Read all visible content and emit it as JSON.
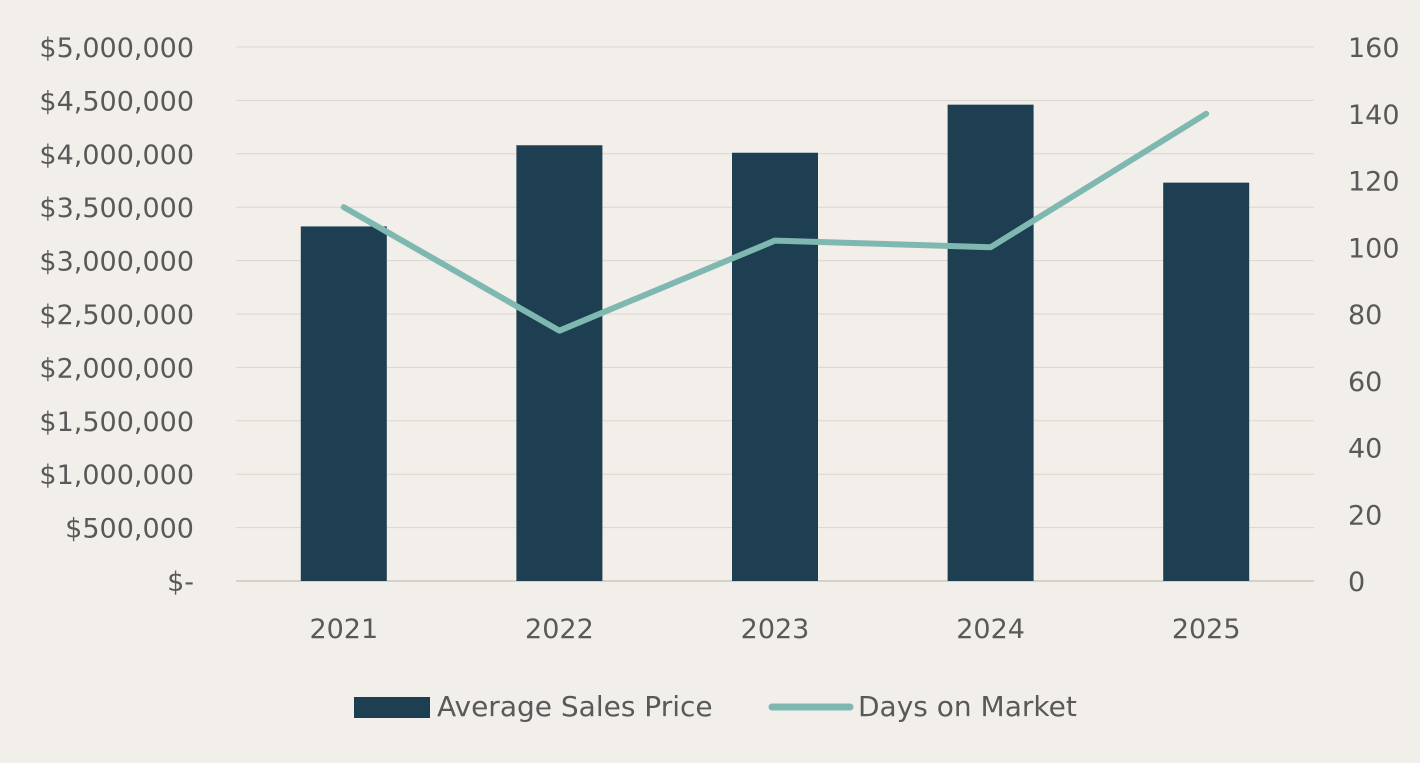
{
  "chart_data": {
    "type": "bar",
    "categories": [
      "2021",
      "2022",
      "2023",
      "2024",
      "2025"
    ],
    "series": [
      {
        "name": "Average Sales Price",
        "type": "bar",
        "axis": "left",
        "color": "#1e3e52",
        "values": [
          3320000,
          4080000,
          4010000,
          4460000,
          3730000
        ]
      },
      {
        "name": "Days on Market",
        "type": "line",
        "axis": "right",
        "color": "#7fb8b0",
        "values": [
          112,
          75,
          102,
          100,
          140
        ]
      }
    ],
    "y_left": {
      "ylim": [
        0,
        5000000
      ],
      "tick_labels": [
        "$-",
        "$500,000",
        "$1,000,000",
        "$1,500,000",
        "$2,000,000",
        "$2,500,000",
        "$3,000,000",
        "$3,500,000",
        "$4,000,000",
        "$4,500,000",
        "$5,000,000"
      ]
    },
    "y_right": {
      "ylim": [
        0,
        160
      ],
      "tick_labels": [
        "0",
        "20",
        "40",
        "60",
        "80",
        "100",
        "120",
        "140",
        "160"
      ]
    },
    "grid": true,
    "legend_position": "bottom-center",
    "title": "",
    "xlabel": "",
    "ylabel": ""
  }
}
